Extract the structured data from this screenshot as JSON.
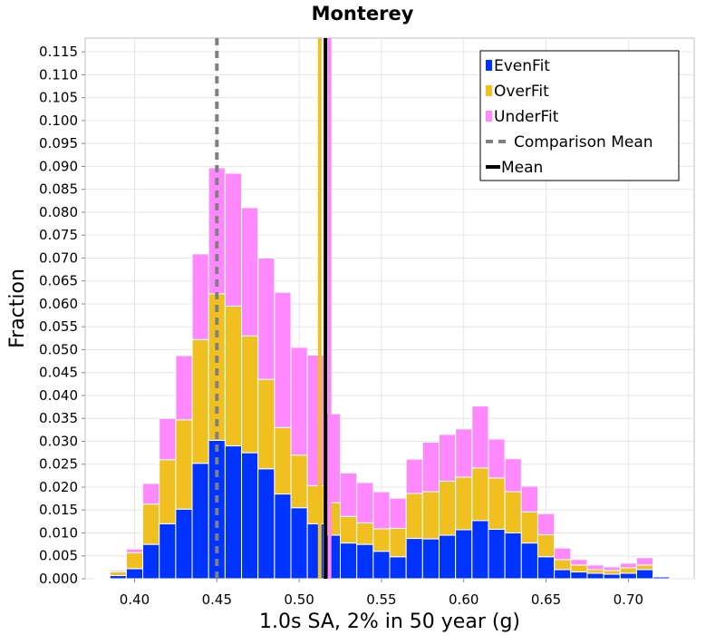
{
  "chart_data": {
    "type": "bar",
    "stacked": true,
    "title": "Monterey",
    "xlabel": "1.0s SA, 2% in 50 year (g)",
    "ylabel": "Fraction",
    "xlim": [
      0.37,
      0.74
    ],
    "ylim": [
      0,
      0.118
    ],
    "bin_width": 0.01,
    "x_ticks": [
      "0.40",
      "0.45",
      "0.50",
      "0.55",
      "0.60",
      "0.65",
      "0.70"
    ],
    "x_tick_values": [
      0.4,
      0.45,
      0.5,
      0.55,
      0.6,
      0.65,
      0.7
    ],
    "y_ticks": [
      "0.000",
      "0.005",
      "0.010",
      "0.015",
      "0.020",
      "0.025",
      "0.030",
      "0.035",
      "0.040",
      "0.045",
      "0.050",
      "0.055",
      "0.060",
      "0.065",
      "0.070",
      "0.075",
      "0.080",
      "0.085",
      "0.090",
      "0.095",
      "0.100",
      "0.105",
      "0.110",
      "0.115"
    ],
    "y_tick_values": [
      0.0,
      0.005,
      0.01,
      0.015,
      0.02,
      0.025,
      0.03,
      0.035,
      0.04,
      0.045,
      0.05,
      0.055,
      0.06,
      0.065,
      0.07,
      0.075,
      0.08,
      0.085,
      0.09,
      0.095,
      0.1,
      0.105,
      0.11,
      0.115
    ],
    "grid": true,
    "legend_position": "top-right",
    "x": [
      0.38,
      0.39,
      0.4,
      0.41,
      0.42,
      0.43,
      0.44,
      0.45,
      0.46,
      0.47,
      0.48,
      0.49,
      0.5,
      0.51,
      0.52,
      0.53,
      0.54,
      0.55,
      0.56,
      0.57,
      0.58,
      0.59,
      0.6,
      0.61,
      0.62,
      0.63,
      0.64,
      0.65,
      0.66,
      0.67,
      0.68,
      0.69,
      0.7,
      0.71,
      0.72
    ],
    "series": [
      {
        "name": "EvenFit",
        "color": "#0033ff",
        "values": [
          0.0002,
          0.0007,
          0.0022,
          0.0075,
          0.012,
          0.0152,
          0.0252,
          0.0302,
          0.029,
          0.0275,
          0.024,
          0.0185,
          0.0155,
          0.012,
          0.0095,
          0.0078,
          0.0075,
          0.006,
          0.0048,
          0.0088,
          0.0087,
          0.0095,
          0.0107,
          0.0127,
          0.0108,
          0.01,
          0.0078,
          0.0048,
          0.002,
          0.0015,
          0.0012,
          0.001,
          0.0012,
          0.002,
          0.0004
        ]
      },
      {
        "name": "OverFit",
        "color": "#f0c020",
        "values": [
          0.0002,
          0.0008,
          0.0035,
          0.0088,
          0.014,
          0.0195,
          0.027,
          0.032,
          0.0305,
          0.0255,
          0.0195,
          0.0145,
          0.0115,
          0.0083,
          0.0071,
          0.0058,
          0.0047,
          0.0049,
          0.0062,
          0.0098,
          0.0103,
          0.0118,
          0.0115,
          0.0115,
          0.0112,
          0.009,
          0.0068,
          0.0048,
          0.0022,
          0.0015,
          0.0008,
          0.0008,
          0.0012,
          0.001,
          0.0002
        ]
      },
      {
        "name": "UnderFit",
        "color": "#ff88ff",
        "values": [
          0.0001,
          0.0003,
          0.0008,
          0.0045,
          0.009,
          0.014,
          0.0187,
          0.0275,
          0.029,
          0.028,
          0.0265,
          0.0295,
          0.0235,
          0.0285,
          0.0194,
          0.0095,
          0.0088,
          0.0081,
          0.0066,
          0.0075,
          0.0108,
          0.0102,
          0.0105,
          0.0135,
          0.0085,
          0.0072,
          0.0056,
          0.0046,
          0.0025,
          0.0012,
          0.001,
          0.0008,
          0.001,
          0.0016,
          0.0002
        ]
      }
    ],
    "vlines": [
      {
        "name": "Comparison Mean",
        "x": 0.45,
        "color": "#808080",
        "style": "dashed"
      },
      {
        "name": "Mean",
        "x": 0.516,
        "color": "#000000",
        "style": "solid"
      },
      {
        "name": "OverFit mean",
        "x": 0.5125,
        "color": "#f0c020",
        "style": "solid"
      },
      {
        "name": "UnderFit mean",
        "x": 0.5185,
        "color": "#ff88ff",
        "style": "solid"
      }
    ],
    "legend": [
      {
        "label": "EvenFit",
        "kind": "patch",
        "color": "#0033ff"
      },
      {
        "label": "OverFit",
        "kind": "patch",
        "color": "#f0c020"
      },
      {
        "label": "UnderFit",
        "kind": "patch",
        "color": "#ff88ff"
      },
      {
        "label": "Comparison Mean",
        "kind": "dashed-line",
        "color": "#808080"
      },
      {
        "label": "Mean",
        "kind": "solid-line",
        "color": "#000000"
      }
    ]
  }
}
